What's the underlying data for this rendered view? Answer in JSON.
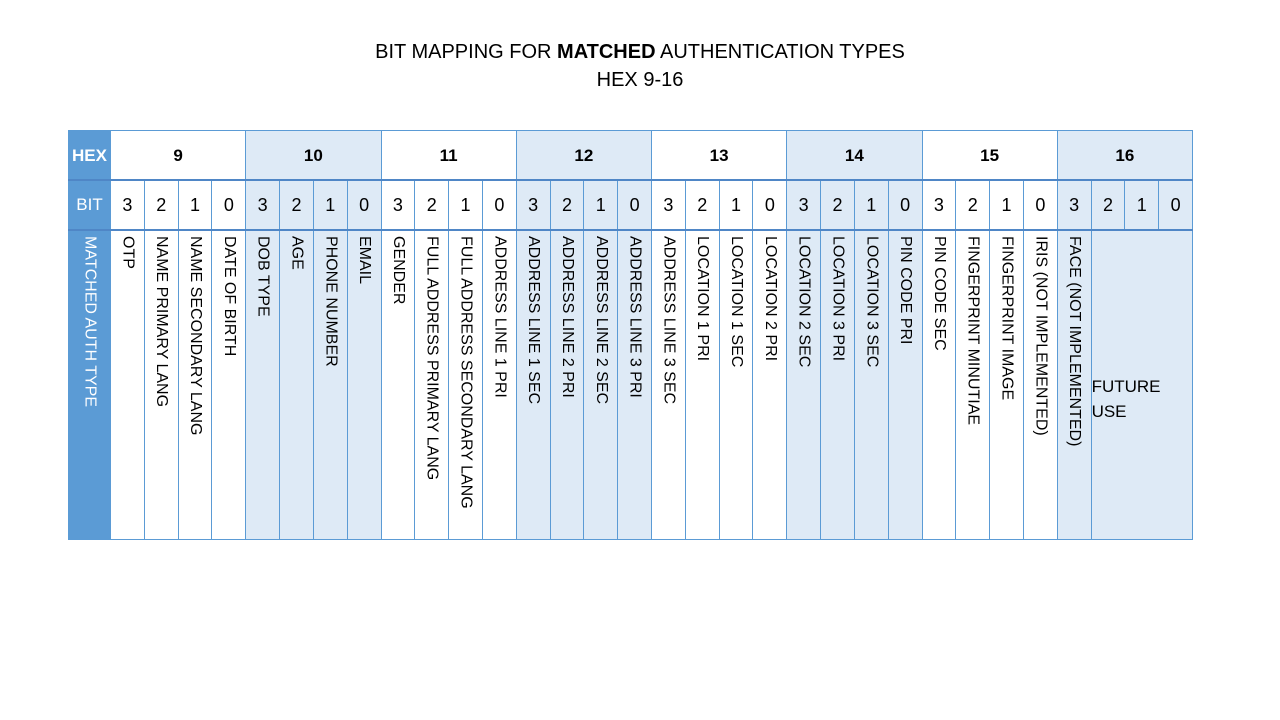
{
  "title": {
    "prefix": "BIT MAPPING FOR ",
    "bold": "MATCHED",
    "suffix": " AUTHENTICATION TYPES",
    "subtitle": "HEX 9-16"
  },
  "row_labels": {
    "hex": "HEX",
    "bit": "BIT",
    "auth": "MATCHED AUTH TYPE"
  },
  "colors": {
    "header_blue": "#5b9bd5",
    "shade": "#deeaf6",
    "border": "#5b9bd5"
  },
  "groups": [
    {
      "hex": "9",
      "bits": [
        "3",
        "2",
        "1",
        "0"
      ],
      "auth": [
        "OTP",
        "NAME PRIMARY LANG",
        "NAME SECONDARY LANG",
        "DATE OF BIRTH"
      ]
    },
    {
      "hex": "10",
      "bits": [
        "3",
        "2",
        "1",
        "0"
      ],
      "auth": [
        "DOB TYPE",
        "AGE",
        "PHONE NUMBER",
        "EMAIL"
      ]
    },
    {
      "hex": "11",
      "bits": [
        "3",
        "2",
        "1",
        "0"
      ],
      "auth": [
        "GENDER",
        "FULL ADDRESS PRIMARY LANG",
        "FULL ADDRESS SECONDARY LANG",
        "ADDRESS LINE 1 PRI"
      ]
    },
    {
      "hex": "12",
      "bits": [
        "3",
        "2",
        "1",
        "0"
      ],
      "auth": [
        "ADDRESS LINE 1 SEC",
        "ADDRESS LINE 2 PRI",
        "ADDRESS LINE 2 SEC",
        "ADDRESS LINE 3 PRI"
      ]
    },
    {
      "hex": "13",
      "bits": [
        "3",
        "2",
        "1",
        "0"
      ],
      "auth": [
        "ADDRESS LINE 3 SEC",
        "LOCATION 1 PRI",
        "LOCATION 1 SEC",
        "LOCATION 2 PRI"
      ]
    },
    {
      "hex": "14",
      "bits": [
        "3",
        "2",
        "1",
        "0"
      ],
      "auth": [
        "LOCATION 2 SEC",
        "LOCATION 3 PRI",
        "LOCATION 3 SEC",
        "PIN CODE PRI"
      ]
    },
    {
      "hex": "15",
      "bits": [
        "3",
        "2",
        "1",
        "0"
      ],
      "auth": [
        "PIN CODE SEC",
        "FINGERPRINT MINUTIAE",
        "FINGERPRINT IMAGE",
        "IRIS (NOT IMPLEMENTED)"
      ]
    },
    {
      "hex": "16",
      "bits": [
        "3",
        "2",
        "1",
        "0"
      ],
      "auth": [
        "FACE (NOT IMPLEMENTED)"
      ],
      "future_use": [
        "FUTURE",
        "USE"
      ]
    }
  ]
}
